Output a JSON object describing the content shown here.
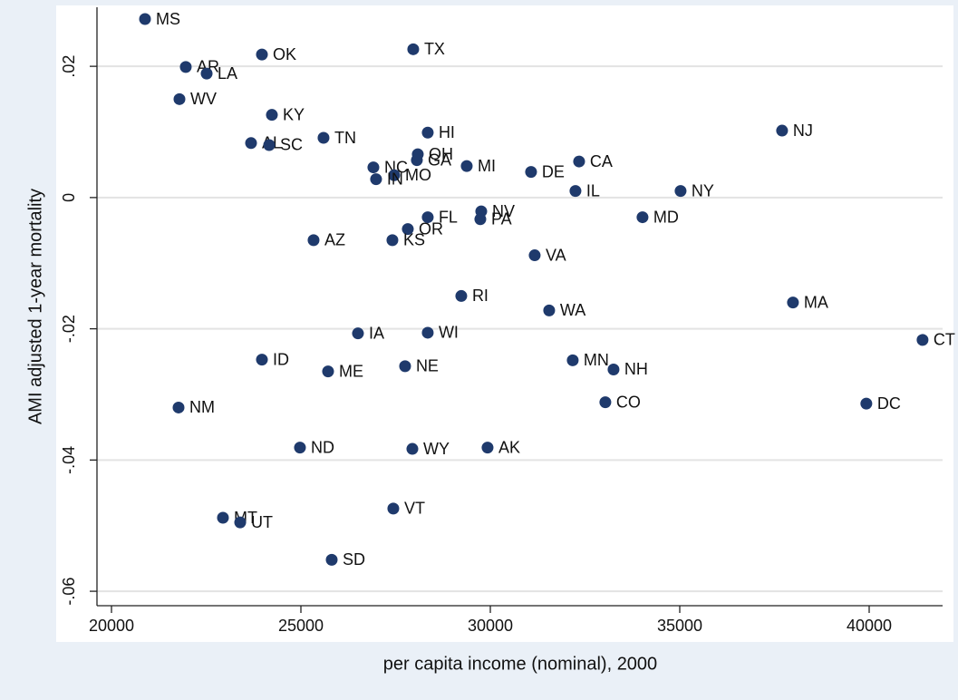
{
  "chart_data": {
    "type": "scatter",
    "x_label": "per capita income (nominal), 2000",
    "y_label": "AMI adjusted 1-year mortality",
    "color": "#1f3a6c",
    "grid": true,
    "xlim": [
      19617,
      41938
    ],
    "ylim": [
      -0.0622,
      0.029
    ],
    "xticks": [
      20000,
      25000,
      30000,
      35000,
      40000
    ],
    "yticks": [
      {
        "value": -0.06,
        "label": "-.06"
      },
      {
        "value": -0.04,
        "label": "-.04"
      },
      {
        "value": -0.02,
        "label": "-.02"
      },
      0,
      {
        "value": 0.02,
        "label": ".02"
      }
    ],
    "point_labels": [
      "MS",
      "OK",
      "TX",
      "AR",
      "LA",
      "WV",
      "NJ",
      "KY",
      "HI",
      "TN",
      "AL",
      "SC",
      "OH",
      "GA",
      "CA",
      "NC",
      "MI",
      "DE",
      "MO",
      "IN",
      "IL",
      "NY",
      "NV",
      "FL",
      "PA",
      "MD",
      "OR",
      "AZ",
      "KS",
      "VA",
      "RI",
      "MA",
      "WA",
      "IA",
      "WI",
      "CT",
      "ID",
      "MN",
      "NE",
      "ME",
      "NH",
      "CO",
      "DC",
      "NM",
      "ND",
      "AK",
      "WY",
      "VT",
      "MT",
      "UT",
      "SD"
    ],
    "x": [
      20885,
      23971,
      27965,
      21961,
      22512,
      21794,
      37701,
      24234,
      28348,
      25597,
      23684,
      24162,
      28085,
      28061,
      32343,
      26913,
      29377,
      31075,
      27463,
      26984,
      32247,
      35022,
      29760,
      28348,
      29736,
      34017,
      27822,
      25334,
      27415,
      31171,
      29233,
      37988,
      31553,
      26506,
      28348,
      41409,
      23971,
      32175,
      27750,
      25717,
      33252,
      33036,
      39925,
      21770,
      24975,
      29927,
      27942,
      27439,
      22942,
      23397,
      25813
    ],
    "values": [
      0.0272,
      0.0218,
      0.0226,
      0.0199,
      0.0189,
      0.015,
      0.0102,
      0.0126,
      0.0099,
      0.0091,
      0.0083,
      0.008,
      0.0066,
      0.0057,
      0.0055,
      0.0046,
      0.0048,
      0.0039,
      0.0034,
      0.0028,
      0.001,
      0.001,
      -0.0021,
      -0.003,
      -0.0033,
      -0.003,
      -0.0048,
      -0.0065,
      -0.0065,
      -0.0088,
      -0.015,
      -0.016,
      -0.0172,
      -0.0207,
      -0.0206,
      -0.0217,
      -0.0247,
      -0.0248,
      -0.0257,
      -0.0265,
      -0.0262,
      -0.0312,
      -0.0314,
      -0.032,
      -0.0381,
      -0.0381,
      -0.0383,
      -0.0474,
      -0.0488,
      -0.0495,
      -0.0552
    ]
  }
}
